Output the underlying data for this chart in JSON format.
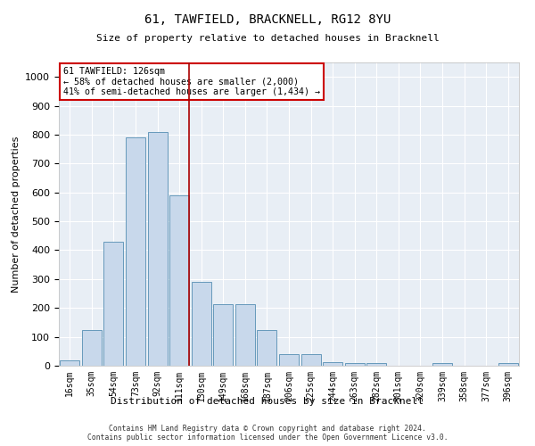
{
  "title": "61, TAWFIELD, BRACKNELL, RG12 8YU",
  "subtitle": "Size of property relative to detached houses in Bracknell",
  "xlabel": "Distribution of detached houses by size in Bracknell",
  "ylabel": "Number of detached properties",
  "bar_color": "#c8d8eb",
  "bar_edge_color": "#6699bb",
  "background_color": "#e8eef5",
  "categories": [
    "16sqm",
    "35sqm",
    "54sqm",
    "73sqm",
    "92sqm",
    "111sqm",
    "130sqm",
    "149sqm",
    "168sqm",
    "187sqm",
    "206sqm",
    "225sqm",
    "244sqm",
    "263sqm",
    "282sqm",
    "301sqm",
    "320sqm",
    "339sqm",
    "358sqm",
    "377sqm",
    "396sqm"
  ],
  "values": [
    18,
    125,
    430,
    790,
    810,
    590,
    290,
    213,
    213,
    125,
    40,
    40,
    12,
    10,
    10,
    0,
    0,
    10,
    0,
    0,
    10
  ],
  "ylim": [
    0,
    1050
  ],
  "yticks": [
    0,
    100,
    200,
    300,
    400,
    500,
    600,
    700,
    800,
    900,
    1000
  ],
  "annotation_title": "61 TAWFIELD: 126sqm",
  "annotation_line1": "← 58% of detached houses are smaller (2,000)",
  "annotation_line2": "41% of semi-detached houses are larger (1,434) →",
  "footer_line1": "Contains HM Land Registry data © Crown copyright and database right 2024.",
  "footer_line2": "Contains public sector information licensed under the Open Government Licence v3.0."
}
